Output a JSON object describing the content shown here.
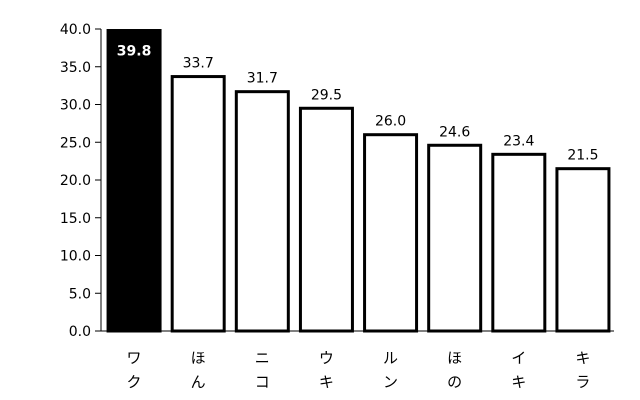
{
  "chart_data": {
    "type": "bar",
    "categories": [
      [
        "ワ",
        "ク"
      ],
      [
        "ほ",
        "ん"
      ],
      [
        "ニ",
        "コ"
      ],
      [
        "ウ",
        "キ"
      ],
      [
        "ル",
        "ン"
      ],
      [
        "ほ",
        "の"
      ],
      [
        "イ",
        "キ"
      ],
      [
        "キ",
        "ラ"
      ]
    ],
    "values": [
      39.8,
      33.7,
      31.7,
      29.5,
      26.0,
      24.6,
      23.4,
      21.5
    ],
    "value_labels": [
      "39.8",
      "33.7",
      "31.7",
      "29.5",
      "26.0",
      "24.6",
      "23.4",
      "21.5"
    ],
    "y_ticks": [
      "0.0",
      "5.0",
      "10.0",
      "15.0",
      "20.0",
      "25.0",
      "30.0",
      "35.0",
      "40.0"
    ],
    "ylim": [
      0,
      40
    ],
    "title": "",
    "xlabel": "",
    "ylabel": "",
    "grid": false,
    "highlight_index": 0,
    "colors": {
      "highlight_fill": "#000000",
      "bar_fill": "#ffffff",
      "bar_stroke": "#000000",
      "axis": "#000000"
    }
  }
}
